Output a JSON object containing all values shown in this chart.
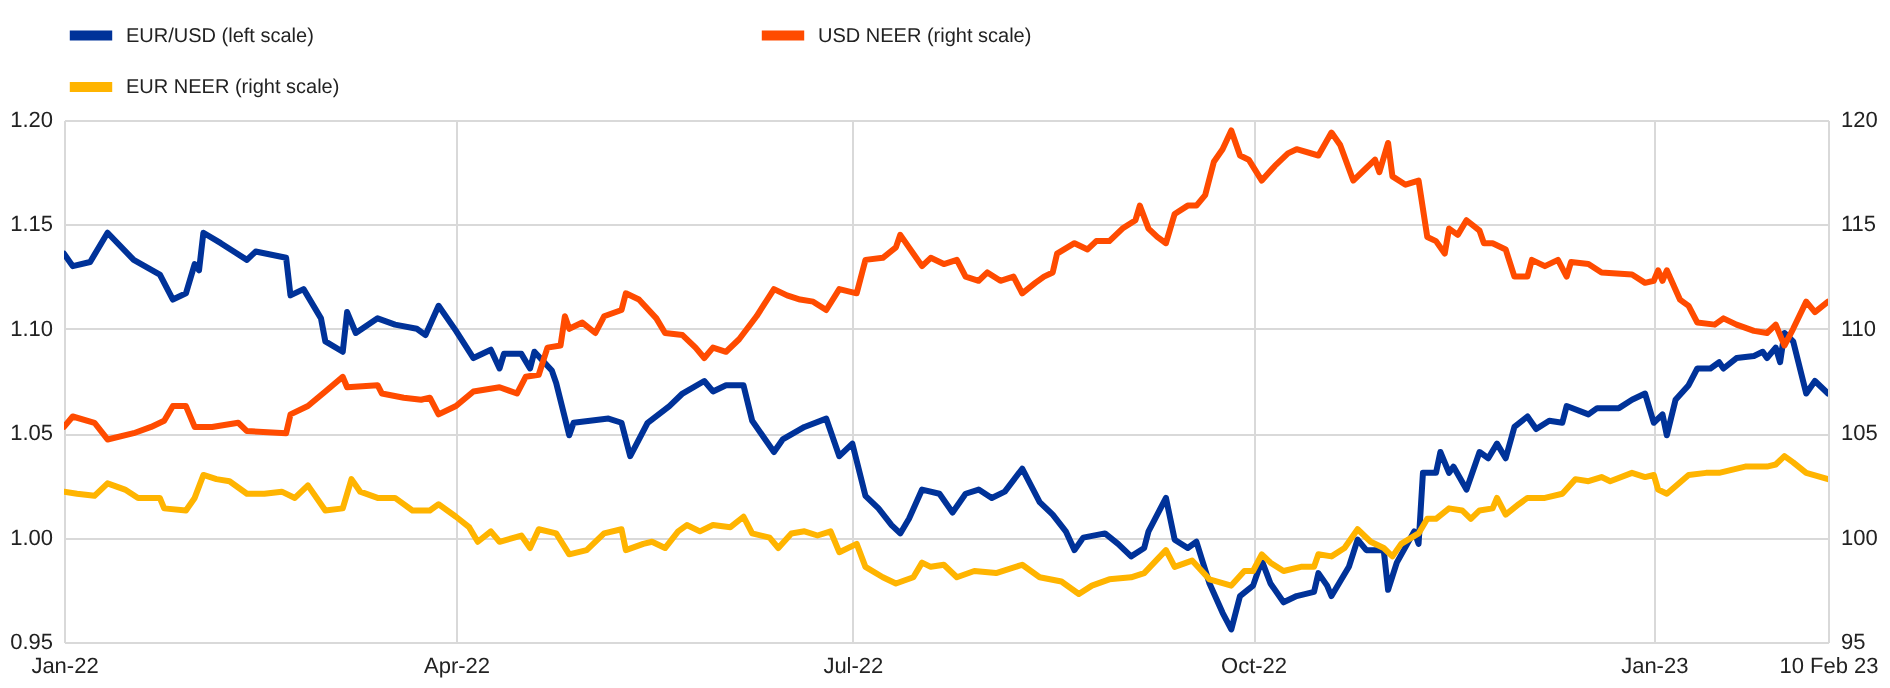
{
  "chart_data": {
    "type": "line",
    "legend": "top",
    "grid": true,
    "line_style": "solid",
    "xlim": [
      "2022-01-01",
      "2023-02-10"
    ],
    "xticks": [
      {
        "value": "2022-01-01",
        "label": "Jan-22"
      },
      {
        "value": "2022-04-01",
        "label": "Apr-22"
      },
      {
        "value": "2022-07-01",
        "label": "Jul-22"
      },
      {
        "value": "2022-10-01",
        "label": "Oct-22"
      },
      {
        "value": "2023-01-01",
        "label": "Jan-23"
      },
      {
        "value": "2023-02-10",
        "label": "10 Feb 23"
      }
    ],
    "ylim": [
      0.95,
      1.2
    ],
    "yticks": [
      {
        "value": 0.95,
        "label": "0.95"
      },
      {
        "value": 1.0,
        "label": "1.00"
      },
      {
        "value": 1.05,
        "label": "1.05"
      },
      {
        "value": 1.1,
        "label": "1.10"
      },
      {
        "value": 1.15,
        "label": "1.15"
      },
      {
        "value": 1.2,
        "label": "1.20"
      }
    ],
    "y2lim": [
      95,
      120
    ],
    "y2ticks": [
      95,
      100,
      105,
      110,
      115,
      120
    ],
    "series": [
      {
        "name": "EUR/USD (left scale)",
        "color": "#003299",
        "x": [
          "2022-01-01",
          "2022-01-03",
          "2022-01-07",
          "2022-01-11",
          "2022-01-17",
          "2022-01-23",
          "2022-01-26",
          "2022-01-29",
          "2022-01-31",
          "2022-02-01",
          "2022-02-02",
          "2022-02-06",
          "2022-02-12",
          "2022-02-14",
          "2022-02-21",
          "2022-02-22",
          "2022-02-25",
          "2022-03-01",
          "2022-03-02",
          "2022-03-06",
          "2022-03-07",
          "2022-03-09",
          "2022-03-14",
          "2022-03-18",
          "2022-03-23",
          "2022-03-25",
          "2022-03-28",
          "2022-04-01",
          "2022-04-05",
          "2022-04-09",
          "2022-04-11",
          "2022-04-12",
          "2022-04-16",
          "2022-04-18",
          "2022-04-19",
          "2022-04-23",
          "2022-04-24",
          "2022-04-27",
          "2022-04-28",
          "2022-05-06",
          "2022-05-09",
          "2022-05-11",
          "2022-05-15",
          "2022-05-20",
          "2022-05-23",
          "2022-05-28",
          "2022-05-30",
          "2022-06-02",
          "2022-06-06",
          "2022-06-08",
          "2022-06-11",
          "2022-06-13",
          "2022-06-15",
          "2022-06-20",
          "2022-06-25",
          "2022-06-28",
          "2022-07-01",
          "2022-07-04",
          "2022-07-07",
          "2022-07-10",
          "2022-07-12",
          "2022-07-14",
          "2022-07-17",
          "2022-07-21",
          "2022-07-24",
          "2022-07-27",
          "2022-07-30",
          "2022-08-02",
          "2022-08-05",
          "2022-08-09",
          "2022-08-11",
          "2022-08-13",
          "2022-08-16",
          "2022-08-19",
          "2022-08-21",
          "2022-08-23",
          "2022-08-28",
          "2022-08-31",
          "2022-09-03",
          "2022-09-06",
          "2022-09-07",
          "2022-09-11",
          "2022-09-13",
          "2022-09-16",
          "2022-09-18",
          "2022-09-21",
          "2022-09-24",
          "2022-09-26",
          "2022-09-28",
          "2022-10-01",
          "2022-10-03",
          "2022-10-05",
          "2022-10-08",
          "2022-10-11",
          "2022-10-15",
          "2022-10-16",
          "2022-10-18",
          "2022-10-19",
          "2022-10-23",
          "2022-10-25",
          "2022-10-27",
          "2022-10-31",
          "2022-11-01",
          "2022-11-03",
          "2022-11-07",
          "2022-11-08",
          "2022-11-09",
          "2022-11-12",
          "2022-11-13",
          "2022-11-15",
          "2022-11-16",
          "2022-11-19",
          "2022-11-22",
          "2022-11-24",
          "2022-11-26",
          "2022-11-28",
          "2022-11-30",
          "2022-12-03",
          "2022-12-05",
          "2022-12-08",
          "2022-12-11",
          "2022-12-12",
          "2022-12-17",
          "2022-12-19",
          "2022-12-24",
          "2022-12-27",
          "2022-12-30",
          "2023-01-01",
          "2023-01-03",
          "2023-01-04",
          "2023-01-06",
          "2023-01-09",
          "2023-01-11",
          "2023-01-14",
          "2023-01-16",
          "2023-01-17",
          "2023-01-20",
          "2023-01-24",
          "2023-01-26",
          "2023-01-27",
          "2023-01-29",
          "2023-01-30",
          "2023-01-31",
          "2023-02-02",
          "2023-02-05",
          "2023-02-07",
          "2023-02-10"
        ],
        "values": [
          1.136,
          1.13,
          1.132,
          1.146,
          1.133,
          1.126,
          1.114,
          1.117,
          1.131,
          1.128,
          1.146,
          1.141,
          1.133,
          1.137,
          1.134,
          1.116,
          1.119,
          1.105,
          1.094,
          1.089,
          1.108,
          1.098,
          1.105,
          1.102,
          1.1,
          1.097,
          1.111,
          1.099,
          1.086,
          1.09,
          1.081,
          1.088,
          1.088,
          1.081,
          1.089,
          1.08,
          1.074,
          1.049,
          1.055,
          1.057,
          1.055,
          1.039,
          1.055,
          1.063,
          1.069,
          1.075,
          1.07,
          1.073,
          1.073,
          1.056,
          1.047,
          1.041,
          1.047,
          1.053,
          1.057,
          1.039,
          1.045,
          1.02,
          1.014,
          1.006,
          1.002,
          1.009,
          1.023,
          1.021,
          1.012,
          1.021,
          1.023,
          1.019,
          1.022,
          1.033,
          1.025,
          1.017,
          1.011,
          1.003,
          0.994,
          1.0,
          1.002,
          0.997,
          0.991,
          0.995,
          1.003,
          1.019,
          0.999,
          0.995,
          0.998,
          0.978,
          0.964,
          0.956,
          0.972,
          0.977,
          0.989,
          0.978,
          0.969,
          0.972,
          0.974,
          0.983,
          0.977,
          0.972,
          0.986,
          0.999,
          0.994,
          0.994,
          0.975,
          0.988,
          1.003,
          0.997,
          1.031,
          1.031,
          1.041,
          1.031,
          1.034,
          1.023,
          1.041,
          1.038,
          1.045,
          1.038,
          1.053,
          1.058,
          1.052,
          1.056,
          1.055,
          1.063,
          1.059,
          1.062,
          1.062,
          1.066,
          1.069,
          1.055,
          1.059,
          1.049,
          1.066,
          1.073,
          1.081,
          1.081,
          1.084,
          1.081,
          1.086,
          1.087,
          1.089,
          1.086,
          1.091,
          1.084,
          1.098,
          1.094,
          1.069,
          1.075,
          1.069
        ]
      },
      {
        "name": "USD NEER (right scale)",
        "color": "#ff4b00",
        "axis": "y2",
        "x": [
          "2022-01-01",
          "2022-01-03",
          "2022-01-08",
          "2022-01-11",
          "2022-01-17",
          "2022-01-21",
          "2022-01-24",
          "2022-01-26",
          "2022-01-29",
          "2022-01-31",
          "2022-02-04",
          "2022-02-10",
          "2022-02-12",
          "2022-02-21",
          "2022-02-22",
          "2022-02-26",
          "2022-03-02",
          "2022-03-06",
          "2022-03-07",
          "2022-03-14",
          "2022-03-15",
          "2022-03-20",
          "2022-03-24",
          "2022-03-26",
          "2022-03-28",
          "2022-04-01",
          "2022-04-05",
          "2022-04-11",
          "2022-04-15",
          "2022-04-17",
          "2022-04-20",
          "2022-04-22",
          "2022-04-25",
          "2022-04-26",
          "2022-04-27",
          "2022-04-30",
          "2022-05-03",
          "2022-05-05",
          "2022-05-09",
          "2022-05-10",
          "2022-05-13",
          "2022-05-17",
          "2022-05-19",
          "2022-05-23",
          "2022-05-26",
          "2022-05-28",
          "2022-05-30",
          "2022-06-02",
          "2022-06-05",
          "2022-06-09",
          "2022-06-13",
          "2022-06-16",
          "2022-06-19",
          "2022-06-22",
          "2022-06-25",
          "2022-06-28",
          "2022-07-02",
          "2022-07-04",
          "2022-07-08",
          "2022-07-11",
          "2022-07-12",
          "2022-07-14",
          "2022-07-17",
          "2022-07-19",
          "2022-07-22",
          "2022-07-25",
          "2022-07-27",
          "2022-07-30",
          "2022-08-01",
          "2022-08-04",
          "2022-08-07",
          "2022-08-09",
          "2022-08-12",
          "2022-08-14",
          "2022-08-16",
          "2022-08-17",
          "2022-08-21",
          "2022-08-24",
          "2022-08-26",
          "2022-08-29",
          "2022-09-01",
          "2022-09-04",
          "2022-09-05",
          "2022-09-07",
          "2022-09-09",
          "2022-09-11",
          "2022-09-13",
          "2022-09-16",
          "2022-09-18",
          "2022-09-20",
          "2022-09-22",
          "2022-09-24",
          "2022-09-26",
          "2022-09-28",
          "2022-09-30",
          "2022-10-03",
          "2022-10-06",
          "2022-10-09",
          "2022-10-11",
          "2022-10-16",
          "2022-10-19",
          "2022-10-21",
          "2022-10-24",
          "2022-10-27",
          "2022-10-29",
          "2022-10-30",
          "2022-11-01",
          "2022-11-02",
          "2022-11-05",
          "2022-11-08",
          "2022-11-10",
          "2022-11-12",
          "2022-11-14",
          "2022-11-15",
          "2022-11-17",
          "2022-11-19",
          "2022-11-22",
          "2022-11-23",
          "2022-11-25",
          "2022-11-28",
          "2022-11-30",
          "2022-12-03",
          "2022-12-04",
          "2022-12-07",
          "2022-12-10",
          "2022-12-12",
          "2022-12-13",
          "2022-12-17",
          "2022-12-20",
          "2022-12-27",
          "2022-12-30",
          "2023-01-01",
          "2023-01-02",
          "2023-01-03",
          "2023-01-04",
          "2023-01-07",
          "2023-01-09",
          "2023-01-11",
          "2023-01-15",
          "2023-01-17",
          "2023-01-20",
          "2023-01-24",
          "2023-01-27",
          "2023-01-29",
          "2023-01-31",
          "2023-02-02",
          "2023-02-05",
          "2023-02-07",
          "2023-02-10"
        ],
        "values": [
          105.3,
          105.8,
          105.5,
          104.7,
          105.0,
          105.3,
          105.6,
          106.3,
          106.3,
          105.3,
          105.3,
          105.5,
          105.1,
          105.0,
          105.9,
          106.3,
          107.0,
          107.7,
          107.2,
          107.3,
          106.9,
          106.7,
          106.6,
          106.7,
          105.9,
          106.3,
          107.0,
          107.2,
          106.9,
          107.7,
          107.8,
          109.1,
          109.2,
          110.6,
          110.0,
          110.3,
          109.8,
          110.6,
          110.9,
          111.7,
          111.4,
          110.5,
          109.8,
          109.7,
          109.1,
          108.6,
          109.1,
          108.9,
          109.5,
          110.6,
          111.9,
          111.6,
          111.4,
          111.3,
          110.9,
          111.9,
          111.7,
          113.3,
          113.4,
          113.9,
          114.5,
          113.9,
          113.0,
          113.4,
          113.1,
          113.3,
          112.5,
          112.3,
          112.7,
          112.3,
          112.5,
          111.7,
          112.2,
          112.5,
          112.7,
          113.6,
          114.1,
          113.8,
          114.2,
          114.2,
          114.8,
          115.2,
          115.9,
          114.8,
          114.4,
          114.1,
          115.5,
          115.9,
          115.9,
          116.4,
          118.0,
          118.6,
          119.5,
          118.3,
          118.1,
          117.1,
          117.8,
          118.4,
          118.6,
          118.3,
          119.4,
          118.8,
          117.1,
          117.7,
          118.1,
          117.5,
          118.9,
          117.3,
          116.9,
          117.1,
          114.4,
          114.2,
          113.6,
          114.8,
          114.5,
          115.2,
          114.7,
          114.1,
          114.1,
          113.8,
          112.5,
          112.5,
          113.3,
          113.0,
          113.3,
          112.5,
          113.2,
          113.1,
          112.7,
          112.6,
          112.2,
          112.3,
          112.8,
          112.3,
          112.8,
          111.4,
          111.1,
          110.3,
          110.2,
          110.5,
          110.2,
          109.9,
          109.8,
          110.2,
          109.2,
          110.0,
          111.3,
          110.8,
          111.3
        ]
      },
      {
        "name": "EUR NEER (right scale)",
        "color": "#ffb400",
        "axis": "y2",
        "x": [
          "2022-01-01",
          "2022-01-04",
          "2022-01-08",
          "2022-01-11",
          "2022-01-15",
          "2022-01-18",
          "2022-01-23",
          "2022-01-24",
          "2022-01-29",
          "2022-01-31",
          "2022-02-02",
          "2022-02-05",
          "2022-02-08",
          "2022-02-12",
          "2022-02-16",
          "2022-02-20",
          "2022-02-23",
          "2022-02-26",
          "2022-03-02",
          "2022-03-06",
          "2022-03-08",
          "2022-03-10",
          "2022-03-14",
          "2022-03-18",
          "2022-03-22",
          "2022-03-26",
          "2022-03-28",
          "2022-04-01",
          "2022-04-04",
          "2022-04-06",
          "2022-04-09",
          "2022-04-11",
          "2022-04-16",
          "2022-04-18",
          "2022-04-20",
          "2022-04-24",
          "2022-04-27",
          "2022-05-01",
          "2022-05-05",
          "2022-05-09",
          "2022-05-10",
          "2022-05-14",
          "2022-05-16",
          "2022-05-19",
          "2022-05-22",
          "2022-05-24",
          "2022-05-27",
          "2022-05-30",
          "2022-06-03",
          "2022-06-06",
          "2022-06-08",
          "2022-06-12",
          "2022-06-14",
          "2022-06-17",
          "2022-06-20",
          "2022-06-23",
          "2022-06-26",
          "2022-06-28",
          "2022-07-02",
          "2022-07-04",
          "2022-07-08",
          "2022-07-11",
          "2022-07-15",
          "2022-07-17",
          "2022-07-19",
          "2022-07-22",
          "2022-07-25",
          "2022-07-29",
          "2022-08-03",
          "2022-08-09",
          "2022-08-13",
          "2022-08-18",
          "2022-08-22",
          "2022-08-25",
          "2022-08-29",
          "2022-09-03",
          "2022-09-06",
          "2022-09-11",
          "2022-09-13",
          "2022-09-17",
          "2022-09-21",
          "2022-09-26",
          "2022-09-29",
          "2022-10-01",
          "2022-10-03",
          "2022-10-05",
          "2022-10-08",
          "2022-10-12",
          "2022-10-15",
          "2022-10-16",
          "2022-10-19",
          "2022-10-22",
          "2022-10-25",
          "2022-10-28",
          "2022-10-31",
          "2022-11-02",
          "2022-11-04",
          "2022-11-08",
          "2022-11-10",
          "2022-11-12",
          "2022-11-15",
          "2022-11-18",
          "2022-11-20",
          "2022-11-22",
          "2022-11-25",
          "2022-11-26",
          "2022-11-28",
          "2022-12-01",
          "2022-12-03",
          "2022-12-07",
          "2022-12-11",
          "2022-12-14",
          "2022-12-17",
          "2022-12-20",
          "2022-12-22",
          "2022-12-27",
          "2022-12-30",
          "2023-01-01",
          "2023-01-02",
          "2023-01-04",
          "2023-01-09",
          "2023-01-13",
          "2023-01-16",
          "2023-01-22",
          "2023-01-27",
          "2023-01-29",
          "2023-01-31",
          "2023-02-02",
          "2023-02-05",
          "2023-02-10"
        ],
        "values": [
          102.2,
          102.1,
          102.0,
          102.6,
          102.3,
          101.9,
          101.9,
          101.4,
          101.3,
          101.9,
          103.0,
          102.8,
          102.7,
          102.1,
          102.1,
          102.2,
          101.9,
          102.5,
          101.3,
          101.4,
          102.8,
          102.2,
          101.9,
          101.9,
          101.3,
          101.3,
          101.6,
          101.0,
          100.5,
          99.8,
          100.3,
          99.8,
          100.1,
          99.5,
          100.4,
          100.2,
          99.2,
          99.4,
          100.2,
          100.4,
          99.4,
          99.7,
          99.8,
          99.5,
          100.3,
          100.6,
          100.3,
          100.6,
          100.5,
          101.0,
          100.2,
          100.0,
          99.5,
          100.2,
          100.3,
          100.1,
          100.3,
          99.3,
          99.7,
          98.6,
          98.1,
          97.8,
          98.1,
          98.8,
          98.6,
          98.7,
          98.1,
          98.4,
          98.3,
          98.7,
          98.1,
          97.9,
          97.3,
          97.7,
          98.0,
          98.1,
          98.3,
          99.4,
          98.6,
          98.9,
          98.0,
          97.7,
          98.4,
          98.4,
          99.2,
          98.8,
          98.4,
          98.6,
          98.6,
          99.2,
          99.1,
          99.5,
          100.4,
          99.8,
          99.5,
          99.1,
          99.7,
          100.2,
          100.9,
          100.9,
          101.4,
          101.3,
          100.9,
          101.3,
          101.4,
          101.9,
          101.1,
          101.6,
          101.9,
          101.9,
          102.1,
          102.8,
          102.7,
          102.9,
          102.7,
          103.1,
          102.9,
          103.0,
          102.3,
          102.1,
          103.0,
          103.1,
          103.1,
          103.4,
          103.4,
          103.5,
          103.9,
          103.6,
          103.1,
          102.8
        ]
      }
    ]
  }
}
